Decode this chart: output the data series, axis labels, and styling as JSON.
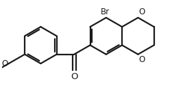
{
  "bg_color": "#ffffff",
  "line_color": "#1a1a1a",
  "line_width": 1.6,
  "font_size": 8.5,
  "figsize": [
    2.86,
    1.54
  ],
  "dpi": 100,
  "bl": 0.3,
  "xlim": [
    -1.55,
    1.6
  ],
  "ylim": [
    -0.72,
    0.72
  ]
}
